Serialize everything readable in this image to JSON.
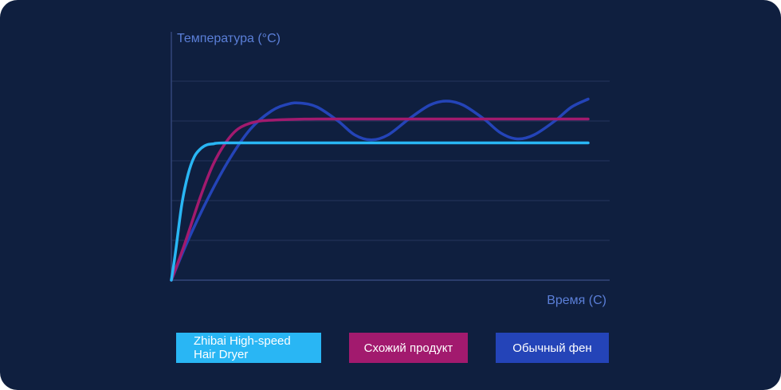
{
  "chart_data": {
    "type": "line",
    "ylabel": "Температура (°C)",
    "xlabel": "Время (С)",
    "xlim": [
      0,
      100
    ],
    "ylim": [
      0,
      100
    ],
    "grid": true,
    "legend_position": "bottom",
    "series": [
      {
        "name": "Zhibai High-speed Hair Dryer",
        "color": "#29b6f4",
        "points": [
          [
            0,
            0
          ],
          [
            1,
            14
          ],
          [
            2.5,
            38
          ],
          [
            4,
            53
          ],
          [
            5.5,
            62
          ],
          [
            7,
            66
          ],
          [
            8.5,
            68
          ],
          [
            10,
            68.5
          ],
          [
            13,
            69
          ],
          [
            30,
            69
          ],
          [
            60,
            69
          ],
          [
            100,
            69
          ]
        ]
      },
      {
        "name": "Схожий продукт",
        "color": "#a21a6e",
        "points": [
          [
            0,
            0
          ],
          [
            3,
            17
          ],
          [
            7,
            42
          ],
          [
            10,
            58
          ],
          [
            13,
            69
          ],
          [
            16,
            76
          ],
          [
            20,
            79.5
          ],
          [
            25,
            80.5
          ],
          [
            35,
            81
          ],
          [
            60,
            81
          ],
          [
            100,
            81
          ]
        ]
      },
      {
        "name": "Обычный фен",
        "color": "#2444b8",
        "points": [
          [
            0,
            0
          ],
          [
            4,
            20
          ],
          [
            9,
            42
          ],
          [
            14,
            61
          ],
          [
            19,
            76
          ],
          [
            24,
            85
          ],
          [
            28,
            88.5
          ],
          [
            31,
            89
          ],
          [
            35,
            87
          ],
          [
            40,
            80
          ],
          [
            44,
            73
          ],
          [
            48,
            70.5
          ],
          [
            52,
            73
          ],
          [
            57,
            81
          ],
          [
            62,
            88
          ],
          [
            66,
            90
          ],
          [
            70,
            88
          ],
          [
            75,
            81
          ],
          [
            79,
            74
          ],
          [
            83,
            71
          ],
          [
            87,
            73
          ],
          [
            92,
            80
          ],
          [
            96,
            87
          ],
          [
            100,
            91
          ]
        ]
      }
    ]
  }
}
